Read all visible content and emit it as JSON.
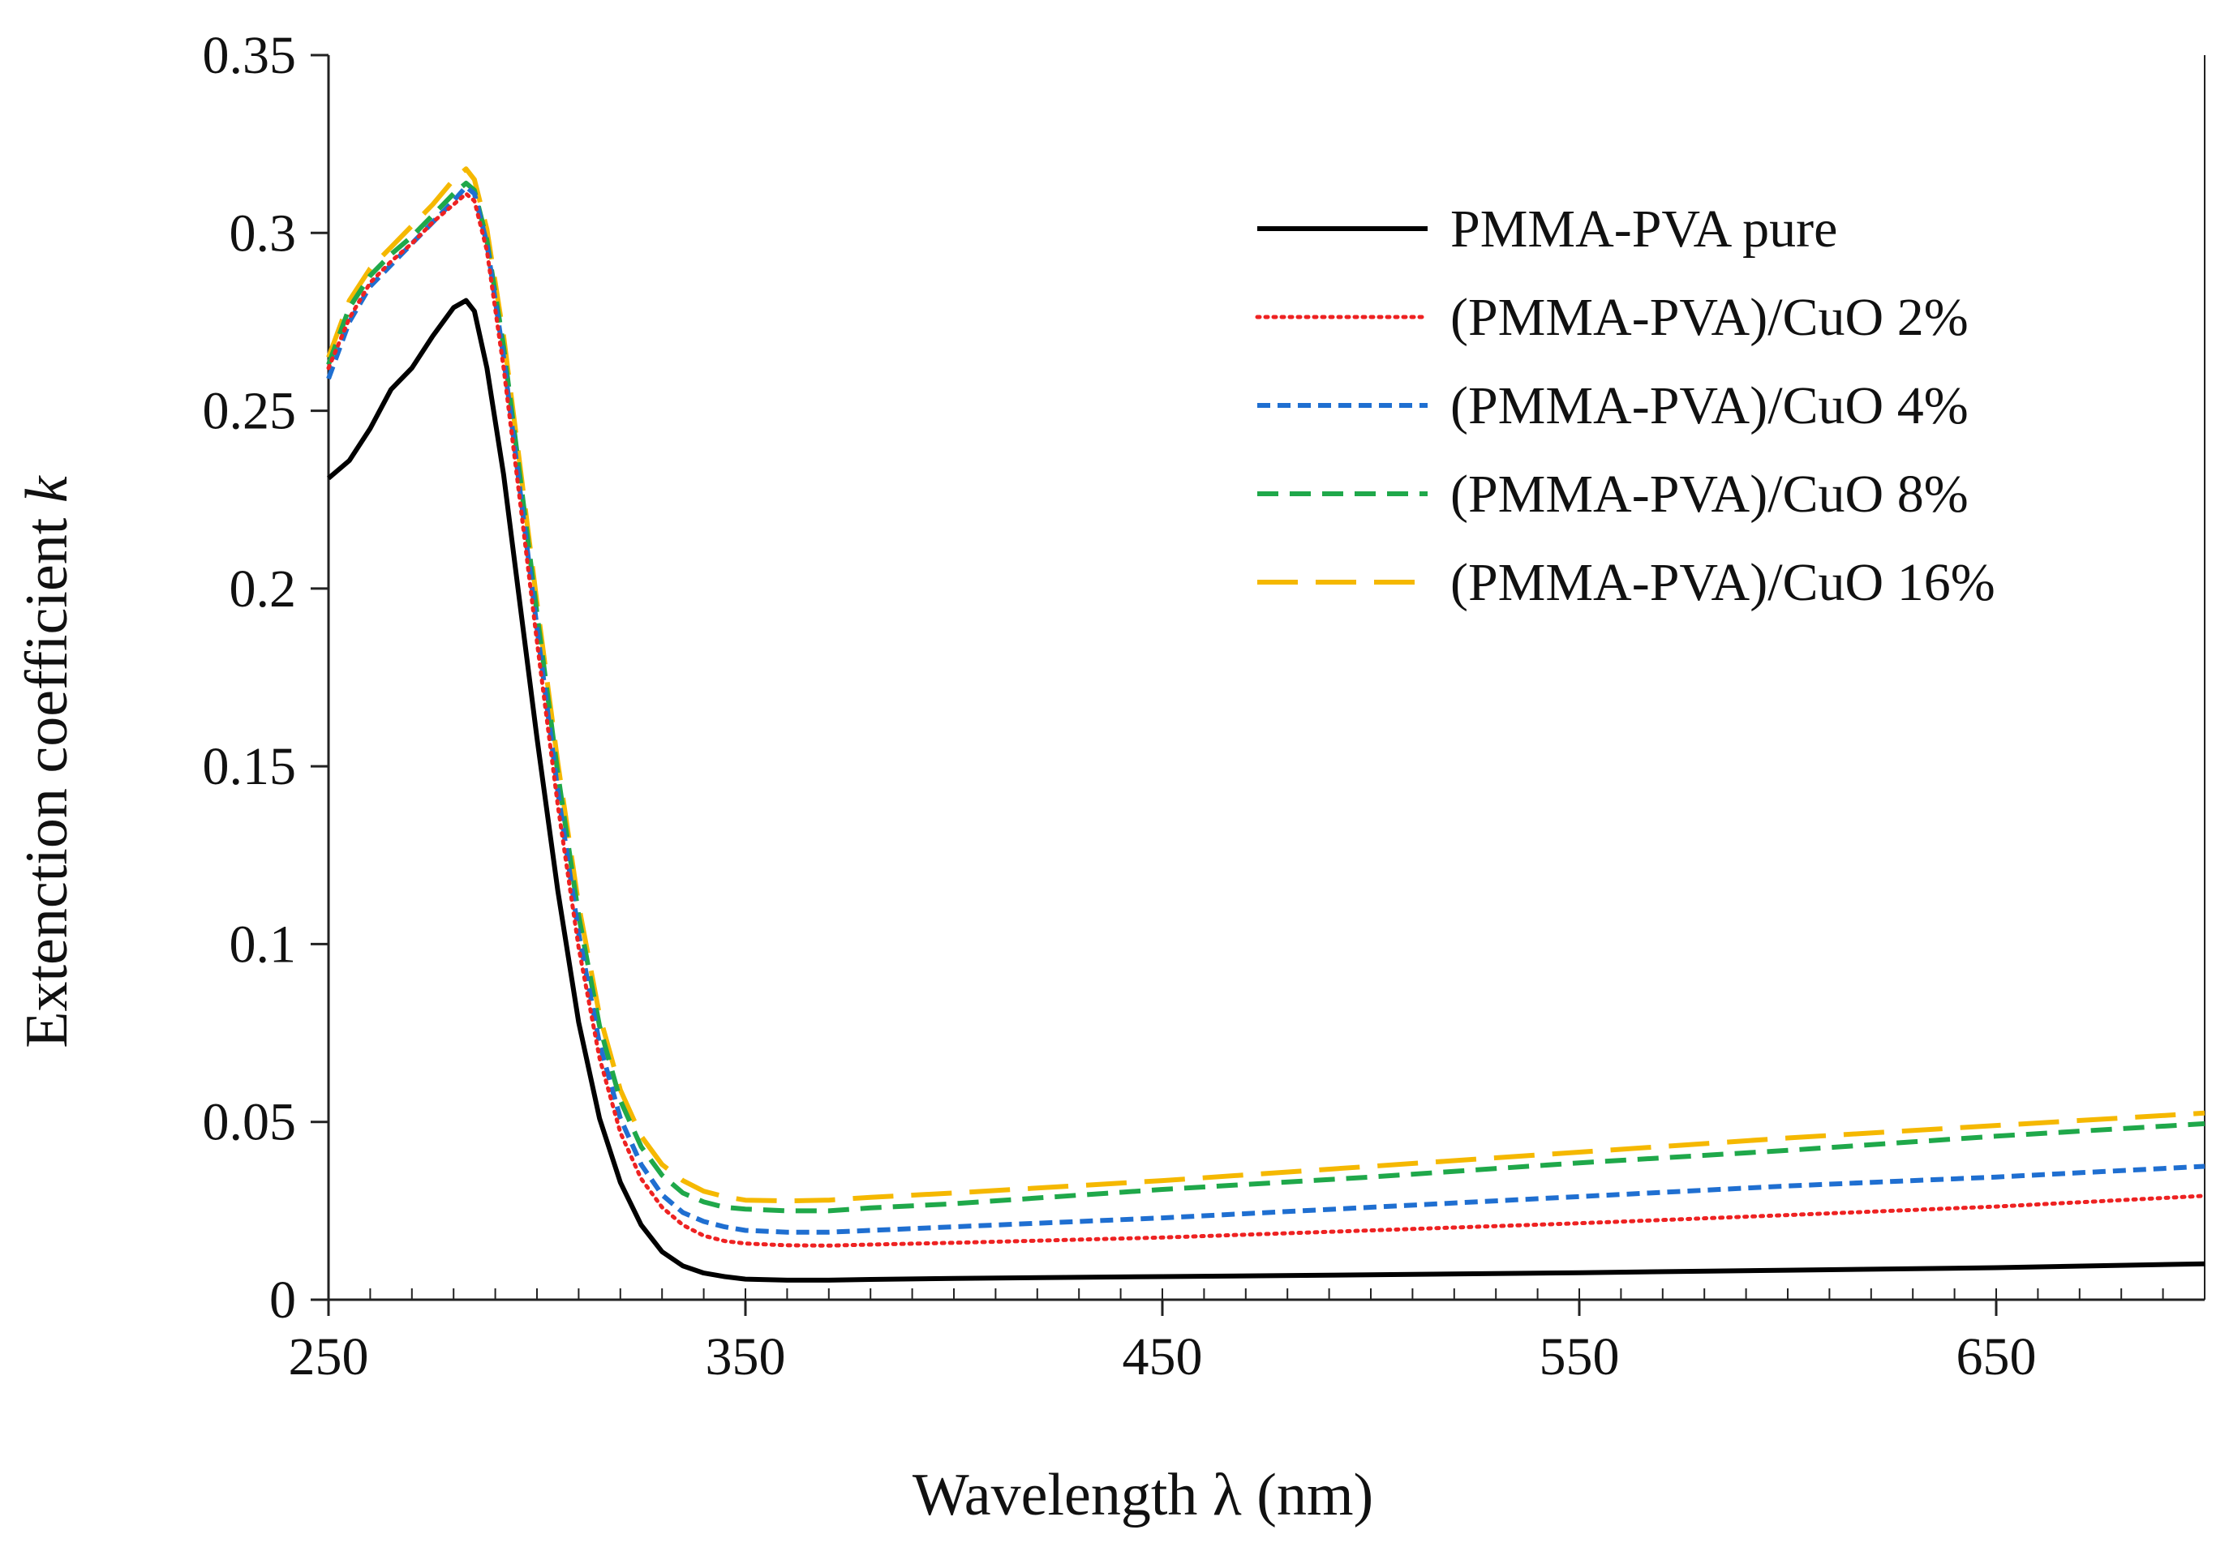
{
  "chart_data": {
    "type": "line",
    "title": "",
    "xlabel": "Wavelength λ (nm)",
    "ylabel_text": "Extenction coefficient ",
    "ylabel_symbol": "k",
    "xlim": [
      250,
      700
    ],
    "ylim": [
      0,
      0.35
    ],
    "xticks": [
      250,
      350,
      450,
      550,
      650
    ],
    "xtick_labels": [
      "250",
      "350",
      "450",
      "550",
      "650"
    ],
    "xminor_step": 10,
    "yticks": [
      0,
      0.05,
      0.1,
      0.15,
      0.2,
      0.25,
      0.3,
      0.35
    ],
    "ytick_labels": [
      "0",
      "0.05",
      "0.1",
      "0.15",
      "0.2",
      "0.25",
      "0.3",
      "0.35"
    ],
    "legend_position": "top-right",
    "grid": false,
    "series": [
      {
        "name": "PMMA-PVA pure",
        "color": "#000000",
        "dash": "solid",
        "x": [
          250,
          255,
          260,
          265,
          270,
          275,
          280,
          283,
          285,
          288,
          292,
          296,
          300,
          305,
          310,
          315,
          320,
          325,
          330,
          335,
          340,
          345,
          350,
          360,
          370,
          380,
          400,
          450,
          500,
          550,
          600,
          650,
          700
        ],
        "y": [
          0.231,
          0.236,
          0.245,
          0.256,
          0.262,
          0.271,
          0.279,
          0.281,
          0.278,
          0.262,
          0.232,
          0.195,
          0.158,
          0.115,
          0.078,
          0.051,
          0.033,
          0.021,
          0.0135,
          0.0095,
          0.0075,
          0.0065,
          0.0058,
          0.0055,
          0.0055,
          0.0057,
          0.006,
          0.0065,
          0.007,
          0.0076,
          0.0083,
          0.009,
          0.0101
        ]
      },
      {
        "name": "(PMMA-PVA)/CuO 2%",
        "color": "#ee2222",
        "dash": "dotted",
        "x": [
          250,
          255,
          260,
          265,
          270,
          275,
          280,
          283,
          285,
          288,
          292,
          296,
          300,
          305,
          310,
          315,
          320,
          325,
          330,
          335,
          340,
          345,
          350,
          360,
          370,
          380,
          400,
          450,
          500,
          550,
          600,
          650,
          700
        ],
        "y": [
          0.262,
          0.276,
          0.286,
          0.292,
          0.297,
          0.303,
          0.308,
          0.311,
          0.309,
          0.295,
          0.262,
          0.224,
          0.185,
          0.139,
          0.099,
          0.068,
          0.047,
          0.034,
          0.026,
          0.021,
          0.018,
          0.0165,
          0.0158,
          0.0153,
          0.0152,
          0.0155,
          0.016,
          0.0175,
          0.0195,
          0.0215,
          0.0238,
          0.0262,
          0.0292
        ]
      },
      {
        "name": "(PMMA-PVA)/CuO 4%",
        "color": "#1f6fd1",
        "dash": "short-dash",
        "x": [
          250,
          255,
          260,
          265,
          270,
          275,
          280,
          283,
          285,
          288,
          292,
          296,
          300,
          305,
          310,
          315,
          320,
          325,
          330,
          335,
          340,
          345,
          350,
          360,
          370,
          380,
          400,
          450,
          500,
          550,
          600,
          650,
          700
        ],
        "y": [
          0.259,
          0.275,
          0.285,
          0.291,
          0.297,
          0.303,
          0.309,
          0.313,
          0.311,
          0.297,
          0.265,
          0.227,
          0.189,
          0.143,
          0.103,
          0.072,
          0.051,
          0.038,
          0.0295,
          0.0245,
          0.022,
          0.0205,
          0.0195,
          0.019,
          0.019,
          0.0195,
          0.0205,
          0.023,
          0.026,
          0.029,
          0.032,
          0.0345,
          0.0375
        ]
      },
      {
        "name": "(PMMA-PVA)/CuO 8%",
        "color": "#1fa84a",
        "dash": "medium-dash",
        "x": [
          250,
          255,
          260,
          265,
          270,
          275,
          280,
          283,
          285,
          288,
          292,
          296,
          300,
          305,
          310,
          315,
          320,
          325,
          330,
          335,
          340,
          345,
          350,
          360,
          370,
          380,
          400,
          450,
          500,
          550,
          600,
          650,
          700
        ],
        "y": [
          0.263,
          0.279,
          0.288,
          0.294,
          0.299,
          0.305,
          0.311,
          0.314,
          0.312,
          0.298,
          0.268,
          0.231,
          0.193,
          0.148,
          0.108,
          0.077,
          0.056,
          0.043,
          0.035,
          0.03,
          0.0275,
          0.026,
          0.0255,
          0.025,
          0.025,
          0.0258,
          0.027,
          0.031,
          0.0345,
          0.0385,
          0.042,
          0.046,
          0.0495
        ]
      },
      {
        "name": "(PMMA-PVA)/CuO 16%",
        "color": "#f5b800",
        "dash": "long-dash",
        "x": [
          250,
          255,
          260,
          265,
          270,
          275,
          280,
          283,
          285,
          288,
          292,
          296,
          300,
          305,
          310,
          315,
          320,
          325,
          330,
          335,
          340,
          345,
          350,
          360,
          370,
          380,
          400,
          450,
          500,
          550,
          600,
          650,
          700
        ],
        "y": [
          0.265,
          0.281,
          0.29,
          0.296,
          0.302,
          0.308,
          0.315,
          0.318,
          0.315,
          0.301,
          0.271,
          0.234,
          0.196,
          0.151,
          0.111,
          0.08,
          0.059,
          0.046,
          0.038,
          0.0335,
          0.0305,
          0.029,
          0.028,
          0.0278,
          0.028,
          0.0288,
          0.03,
          0.0335,
          0.0375,
          0.0415,
          0.0455,
          0.049,
          0.0525
        ]
      }
    ]
  }
}
